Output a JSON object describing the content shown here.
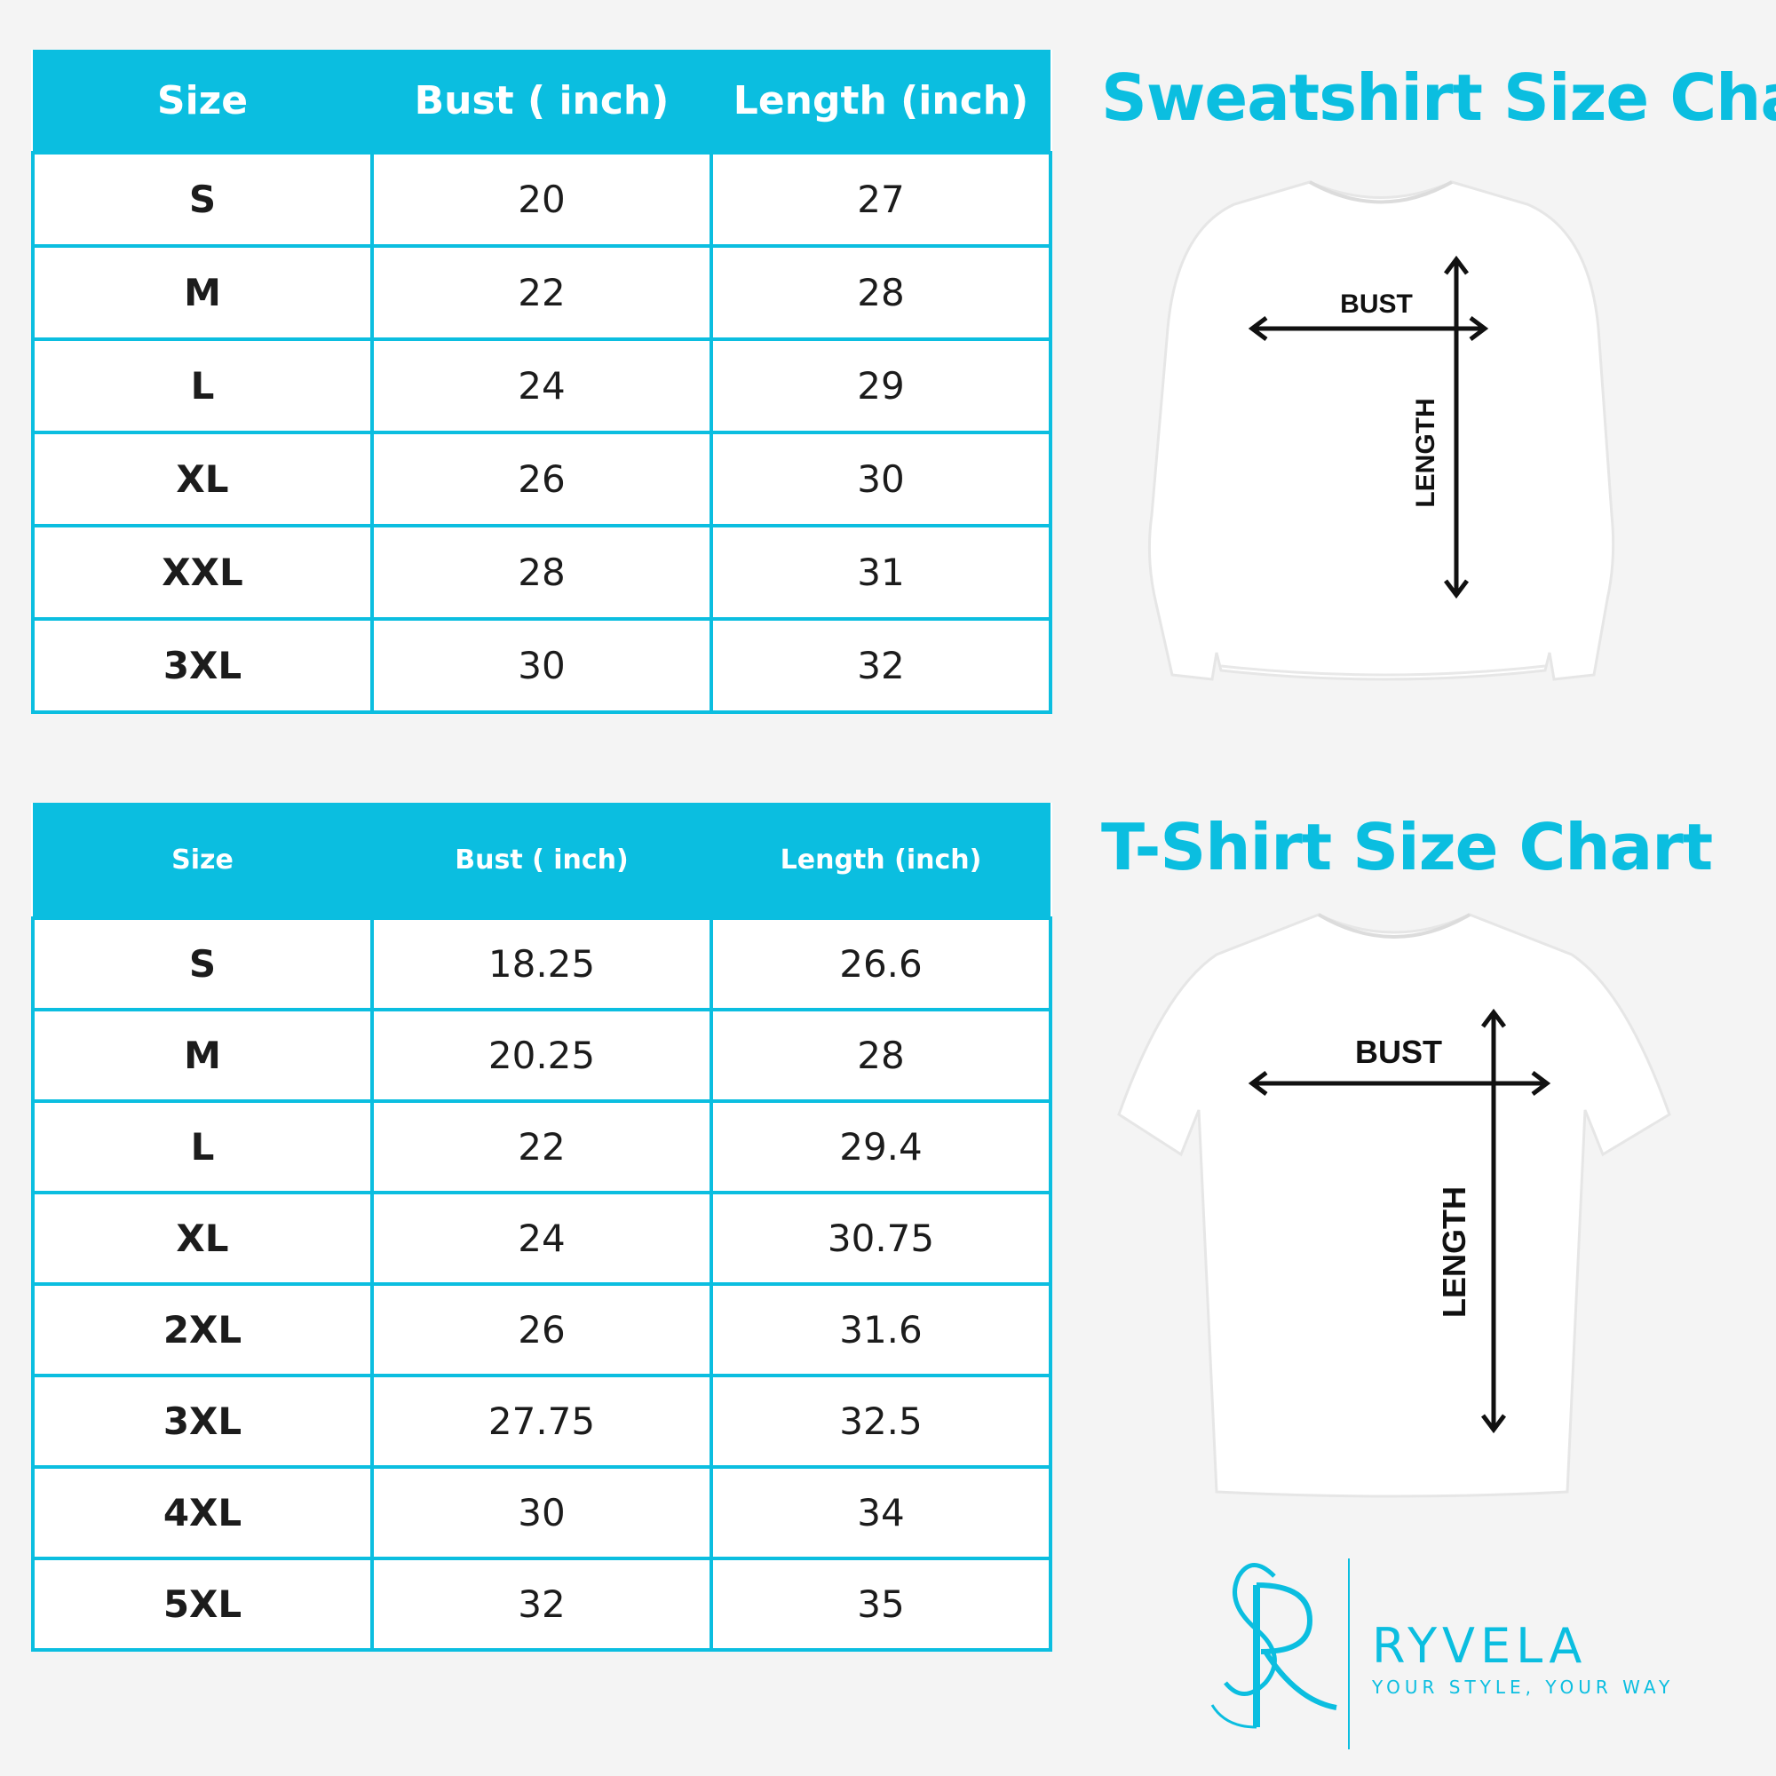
{
  "sweatshirt": {
    "title": "Sweatshirt Size Chart",
    "headers": [
      "Size",
      "Bust ( inch)",
      "Length (inch)"
    ],
    "rows": [
      [
        "S",
        "20",
        "27"
      ],
      [
        "M",
        "22",
        "28"
      ],
      [
        "L",
        "24",
        "29"
      ],
      [
        "XL",
        "26",
        "30"
      ],
      [
        "XXL",
        "28",
        "31"
      ],
      [
        "3XL",
        "30",
        "32"
      ]
    ],
    "diagram": {
      "bust_label": "BUST",
      "length_label": "LENGTH"
    }
  },
  "tshirt": {
    "title": "T-Shirt Size Chart",
    "headers": [
      "Size",
      "Bust ( inch)",
      "Length (inch)"
    ],
    "rows": [
      [
        "S",
        "18.25",
        "26.6"
      ],
      [
        "M",
        "20.25",
        "28"
      ],
      [
        "L",
        "22",
        "29.4"
      ],
      [
        "XL",
        "24",
        "30.75"
      ],
      [
        "2XL",
        "26",
        "31.6"
      ],
      [
        "3XL",
        "27.75",
        "32.5"
      ],
      [
        "4XL",
        "30",
        "34"
      ],
      [
        "5XL",
        "32",
        "35"
      ]
    ],
    "diagram": {
      "bust_label": "BUST",
      "length_label": "LENGTH"
    }
  },
  "brand": {
    "name": "RYVELA",
    "tagline": "YOUR STYLE, YOUR WAY"
  },
  "colors": {
    "accent": "#0bbee0",
    "background": "#f4f4f4",
    "text": "#1c1c1c"
  }
}
